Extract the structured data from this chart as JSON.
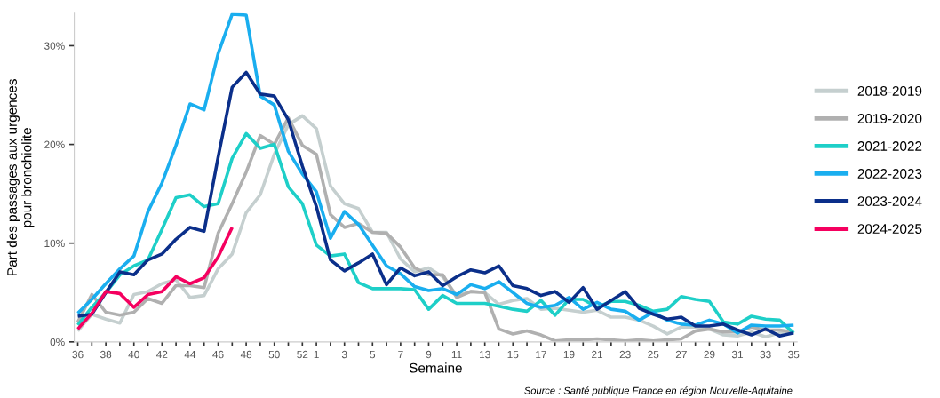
{
  "chart_data": {
    "type": "line",
    "xlabel": "Semaine",
    "ylabel": "Part des passages aux urgences\npour bronchiolite",
    "categories": [
      "36",
      null,
      "38",
      null,
      "40",
      null,
      "42",
      null,
      "44",
      null,
      "46",
      null,
      "48",
      null,
      "50",
      null,
      "52",
      "1",
      null,
      "3",
      null,
      "5",
      null,
      "7",
      null,
      "9",
      null,
      "11",
      null,
      "13",
      null,
      "15",
      null,
      "17",
      null,
      "19",
      null,
      "21",
      null,
      "23",
      null,
      "25",
      null,
      "27",
      null,
      "29",
      null,
      "31",
      null,
      "33",
      null,
      "35"
    ],
    "ylim": [
      0,
      33.3
    ],
    "yticks": [
      {
        "value": 0,
        "label": "0%"
      },
      {
        "value": 10,
        "label": "10%"
      },
      {
        "value": 20,
        "label": "20%"
      },
      {
        "value": 30,
        "label": "30%"
      }
    ],
    "grid": false,
    "legend": "right",
    "line_style": "solid",
    "marker": "none",
    "annotations": [
      "Source : Santé publique France en région Nouvelle-Aquitaine"
    ],
    "series": [
      {
        "name": "2018-2019",
        "color": "#c5cfcf",
        "values": [
          1.1,
          2.8,
          2.3,
          1.9,
          4.8,
          5.1,
          5.9,
          6.3,
          4.5,
          4.7,
          7.4,
          8.9,
          13.1,
          14.9,
          19.0,
          22.0,
          22.9,
          21.6,
          15.8,
          14.0,
          13.5,
          11.1,
          11.1,
          8.4,
          7.1,
          7.5,
          6.6,
          4.7,
          5.1,
          5.0,
          3.8,
          4.2,
          4.4,
          3.3,
          3.4,
          3.2,
          3.0,
          3.2,
          2.5,
          2.5,
          2.2,
          1.6,
          0.8,
          1.5,
          1.5,
          1.3,
          0.7,
          0.6,
          1.0,
          0.5,
          0.9,
          1.1
        ]
      },
      {
        "name": "2019-2020",
        "color": "#b0b0b0",
        "values": [
          2.0,
          4.8,
          3.0,
          2.7,
          3.0,
          4.4,
          3.9,
          5.7,
          5.7,
          5.5,
          11.0,
          14.0,
          17.2,
          20.9,
          20.0,
          22.7,
          19.9,
          19.0,
          12.9,
          11.6,
          12.0,
          11.1,
          11.0,
          9.6,
          7.5,
          6.8,
          6.8,
          4.5,
          5.1,
          5.0,
          1.3,
          0.8,
          1.1,
          0.7,
          0.1,
          0.2,
          0.2,
          0.3,
          0.2,
          0.1,
          0.2,
          0.1,
          0.2,
          0.3,
          1.1,
          1.3,
          1.0,
          1.0,
          1.5,
          1.2,
          1.2,
          1.0
        ]
      },
      {
        "name": "2021-2022",
        "color": "#1ecfc8",
        "values": [
          1.7,
          3.5,
          5.0,
          6.8,
          7.7,
          8.3,
          11.4,
          14.6,
          14.9,
          13.7,
          14.0,
          18.6,
          21.1,
          19.6,
          20.0,
          15.7,
          14.0,
          9.8,
          8.7,
          8.9,
          6.0,
          5.4,
          5.4,
          5.4,
          5.3,
          3.3,
          4.7,
          3.9,
          3.9,
          3.9,
          3.6,
          3.3,
          3.1,
          4.2,
          2.7,
          4.3,
          4.3,
          3.5,
          4.1,
          4.1,
          3.7,
          3.1,
          3.3,
          4.6,
          4.3,
          4.1,
          2.0,
          1.8,
          2.6,
          2.3,
          2.2,
          0.9
        ]
      },
      {
        "name": "2022-2023",
        "color": "#1aaeef",
        "values": [
          2.9,
          4.3,
          5.9,
          7.4,
          8.7,
          13.2,
          16.1,
          19.9,
          24.1,
          23.5,
          29.2,
          33.2,
          33.1,
          24.9,
          24.0,
          19.3,
          17.0,
          15.2,
          10.5,
          13.2,
          11.9,
          9.8,
          7.7,
          6.9,
          5.6,
          5.2,
          5.4,
          4.8,
          5.8,
          5.4,
          6.1,
          5.0,
          3.9,
          3.5,
          3.7,
          4.5,
          3.3,
          4.0,
          3.3,
          3.1,
          2.2,
          3.0,
          2.2,
          1.8,
          1.7,
          2.2,
          1.8,
          0.9,
          1.7,
          1.6,
          1.6,
          1.7
        ]
      },
      {
        "name": "2023-2024",
        "color": "#0b2f8a",
        "values": [
          2.6,
          2.8,
          5.0,
          7.1,
          6.8,
          8.3,
          8.9,
          10.4,
          11.6,
          11.2,
          18.7,
          25.8,
          27.3,
          25.1,
          24.9,
          22.5,
          17.8,
          13.7,
          8.3,
          7.2,
          8.0,
          8.9,
          5.8,
          7.5,
          6.7,
          7.1,
          5.7,
          6.6,
          7.3,
          7.0,
          7.7,
          5.7,
          5.4,
          4.7,
          5.1,
          4.0,
          5.5,
          3.3,
          4.2,
          5.1,
          3.4,
          2.8,
          2.3,
          2.5,
          1.6,
          1.6,
          1.8,
          1.2,
          0.7,
          1.3,
          0.6,
          0.9
        ]
      },
      {
        "name": "2024-2025",
        "color": "#f5005f",
        "values": [
          1.3,
          2.9,
          5.1,
          4.9,
          3.5,
          4.8,
          5.1,
          6.6,
          5.9,
          6.5,
          8.6,
          11.6,
          null,
          null,
          null,
          null,
          null,
          null,
          null,
          null,
          null,
          null,
          null,
          null,
          null,
          null,
          null,
          null,
          null,
          null,
          null,
          null,
          null,
          null,
          null,
          null,
          null,
          null,
          null,
          null,
          null,
          null,
          null,
          null,
          null,
          null,
          null,
          null,
          null,
          null,
          null,
          null
        ]
      }
    ]
  }
}
